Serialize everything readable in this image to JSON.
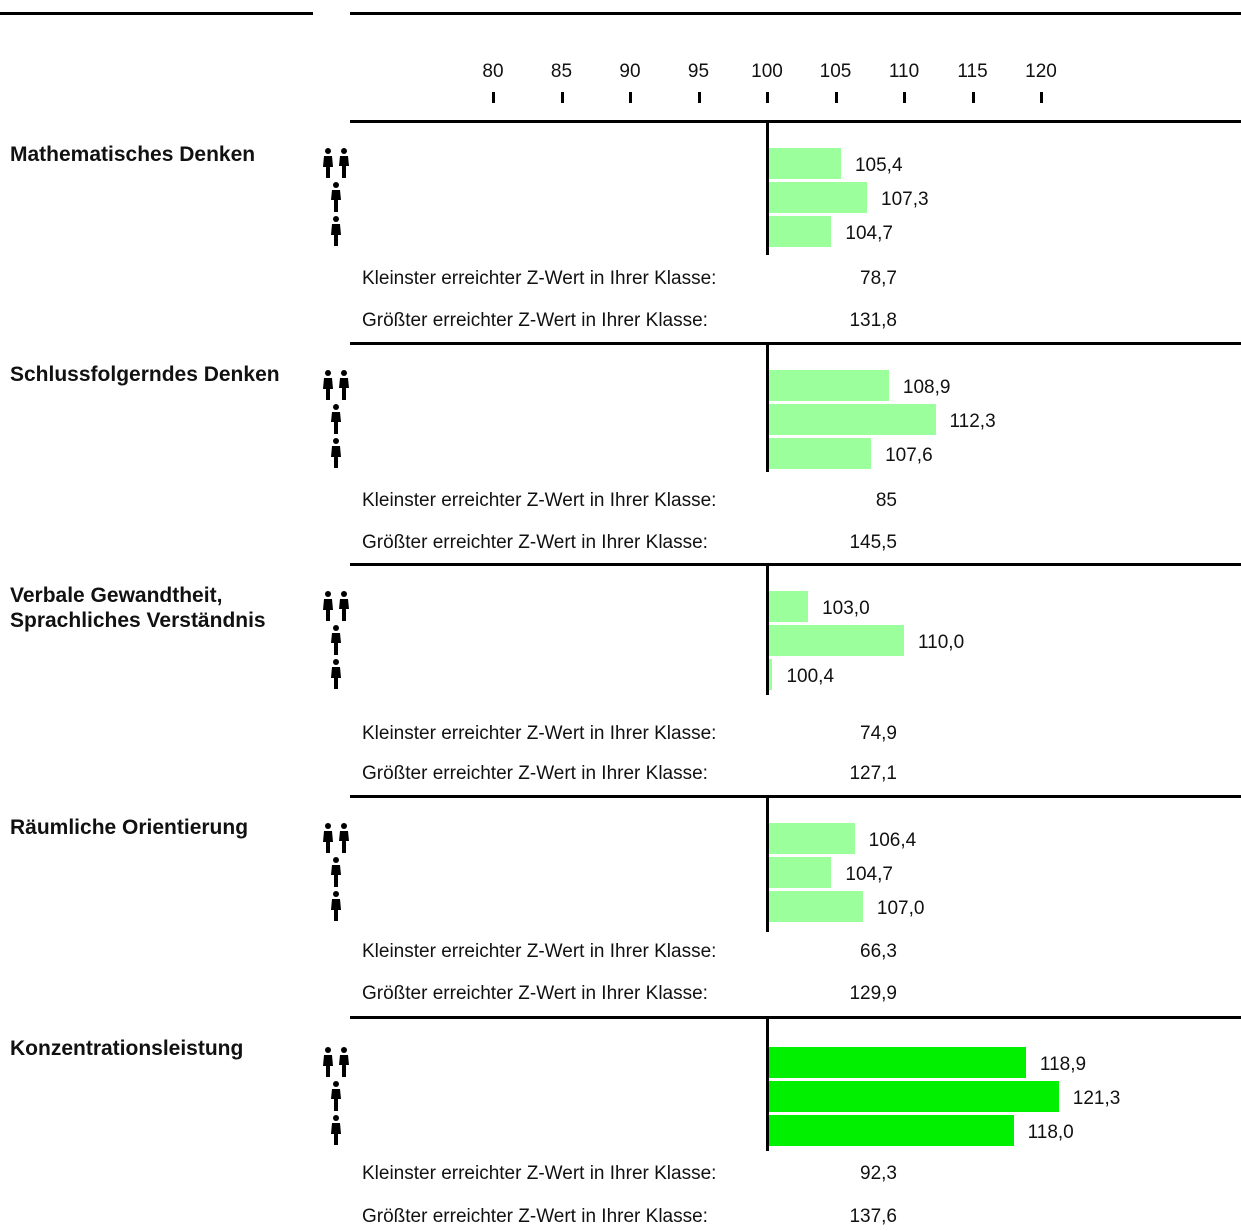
{
  "colors": {
    "bar_light": "#9bff9b",
    "bar_strong": "#00f000"
  },
  "chart_data": {
    "type": "bar",
    "orientation": "horizontal",
    "baseline": 100,
    "xlim": [
      80,
      120
    ],
    "ticks": [
      "80",
      "85",
      "90",
      "95",
      "100",
      "105",
      "110",
      "115",
      "120"
    ],
    "series_icons": [
      "people-pair-icon",
      "man-icon",
      "woman-icon"
    ],
    "categories": [
      {
        "title": "Mathematisches Denken",
        "values": [
          105.4,
          107.3,
          104.7
        ],
        "labels": [
          "105,4",
          "107,3",
          "104,7"
        ],
        "color": "light",
        "min_label": "Kleinster erreichter Z-Wert in Ihrer Klasse:",
        "min_value": "78,7",
        "max_label": "Größter erreichter Z-Wert in Ihrer Klasse:",
        "max_value": "131,8"
      },
      {
        "title": "Schlussfolgerndes Denken",
        "values": [
          108.9,
          112.3,
          107.6
        ],
        "labels": [
          "108,9",
          "112,3",
          "107,6"
        ],
        "color": "light",
        "min_label": "Kleinster erreichter Z-Wert in Ihrer Klasse:",
        "min_value": "85",
        "max_label": "Größter erreichter Z-Wert in Ihrer Klasse:",
        "max_value": "145,5"
      },
      {
        "title": "Verbale Gewandtheit, Sprachliches Verständnis",
        "values": [
          103.0,
          110.0,
          100.4
        ],
        "labels": [
          "103,0",
          "110,0",
          "100,4"
        ],
        "color": "light",
        "min_label": "Kleinster erreichter Z-Wert in Ihrer Klasse:",
        "min_value": "74,9",
        "max_label": "Größter erreichter Z-Wert in Ihrer Klasse:",
        "max_value": "127,1"
      },
      {
        "title": "Räumliche Orientierung",
        "values": [
          106.4,
          104.7,
          107.0
        ],
        "labels": [
          "106,4",
          "104,7",
          "107,0"
        ],
        "color": "light",
        "min_label": "Kleinster erreichter Z-Wert in Ihrer Klasse:",
        "min_value": "66,3",
        "max_label": "Größter erreichter Z-Wert in Ihrer Klasse:",
        "max_value": "129,9"
      },
      {
        "title": "Konzentrationsleistung",
        "values": [
          118.9,
          121.3,
          118.0
        ],
        "labels": [
          "118,9",
          "121,3",
          "118,0"
        ],
        "color": "strong",
        "min_label": "Kleinster erreichter Z-Wert in Ihrer Klasse:",
        "min_value": "92,3",
        "max_label": "Größter erreichter Z-Wert in Ihrer Klasse:",
        "max_value": "137,6"
      }
    ]
  }
}
